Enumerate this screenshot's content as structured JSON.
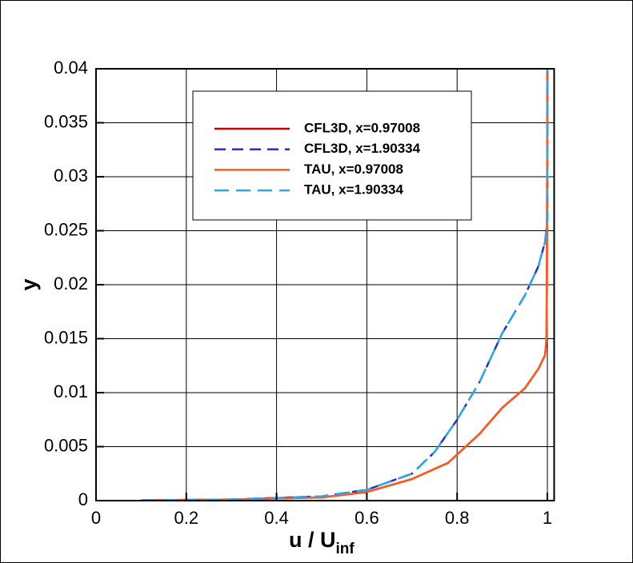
{
  "chart_data": {
    "type": "line",
    "xlabel": "u / U",
    "xlabel_subscript": "inf",
    "ylabel": "y",
    "xlim": [
      0,
      1.015
    ],
    "ylim": [
      0,
      0.04
    ],
    "xticks": [
      0,
      0.2,
      0.4,
      0.6,
      0.8,
      1
    ],
    "yticks": [
      0,
      0.005,
      0.01,
      0.015,
      0.02,
      0.025,
      0.03,
      0.035,
      0.04
    ],
    "grid": true,
    "legend": "top",
    "series": [
      {
        "name": "CFL3D, x=0.97008",
        "color": "#cc0000",
        "style": "solid",
        "x": [
          0.1,
          0.3,
          0.5,
          0.6,
          0.7,
          0.78,
          0.85,
          0.9,
          0.95,
          0.98,
          0.995,
          0.998,
          0.999,
          1
        ],
        "values": [
          3e-05,
          0.0001,
          0.0003,
          0.0008,
          0.002,
          0.0035,
          0.0062,
          0.0086,
          0.0104,
          0.0122,
          0.0135,
          0.015,
          0.02,
          0.04
        ]
      },
      {
        "name": "CFL3D, x=1.90334",
        "color": "#2b2bd6",
        "style": "dashed",
        "x": [
          0.1,
          0.3,
          0.5,
          0.6,
          0.7,
          0.75,
          0.8,
          0.85,
          0.9,
          0.95,
          0.98,
          0.995,
          1,
          1
        ],
        "values": [
          3e-05,
          0.0001,
          0.0004,
          0.001,
          0.0025,
          0.0045,
          0.0075,
          0.011,
          0.0155,
          0.019,
          0.0217,
          0.024,
          0.026,
          0.04
        ]
      },
      {
        "name": "TAU, x=0.97008",
        "color": "#ff5a1a",
        "style": "solid",
        "x": [
          0.1,
          0.3,
          0.5,
          0.6,
          0.7,
          0.78,
          0.85,
          0.9,
          0.95,
          0.98,
          0.995,
          0.998,
          0.999,
          1
        ],
        "values": [
          3e-05,
          0.0001,
          0.0003,
          0.0008,
          0.002,
          0.0035,
          0.0062,
          0.0086,
          0.0104,
          0.0122,
          0.0135,
          0.015,
          0.02,
          0.04
        ]
      },
      {
        "name": "TAU, x=1.90334",
        "color": "#2aa6ea",
        "style": "longdash",
        "x": [
          0.1,
          0.3,
          0.5,
          0.6,
          0.7,
          0.75,
          0.8,
          0.85,
          0.9,
          0.95,
          0.98,
          0.995,
          1,
          1
        ],
        "values": [
          3e-05,
          0.0001,
          0.0004,
          0.001,
          0.0025,
          0.0045,
          0.0075,
          0.011,
          0.0155,
          0.019,
          0.0217,
          0.024,
          0.026,
          0.04
        ]
      }
    ]
  }
}
